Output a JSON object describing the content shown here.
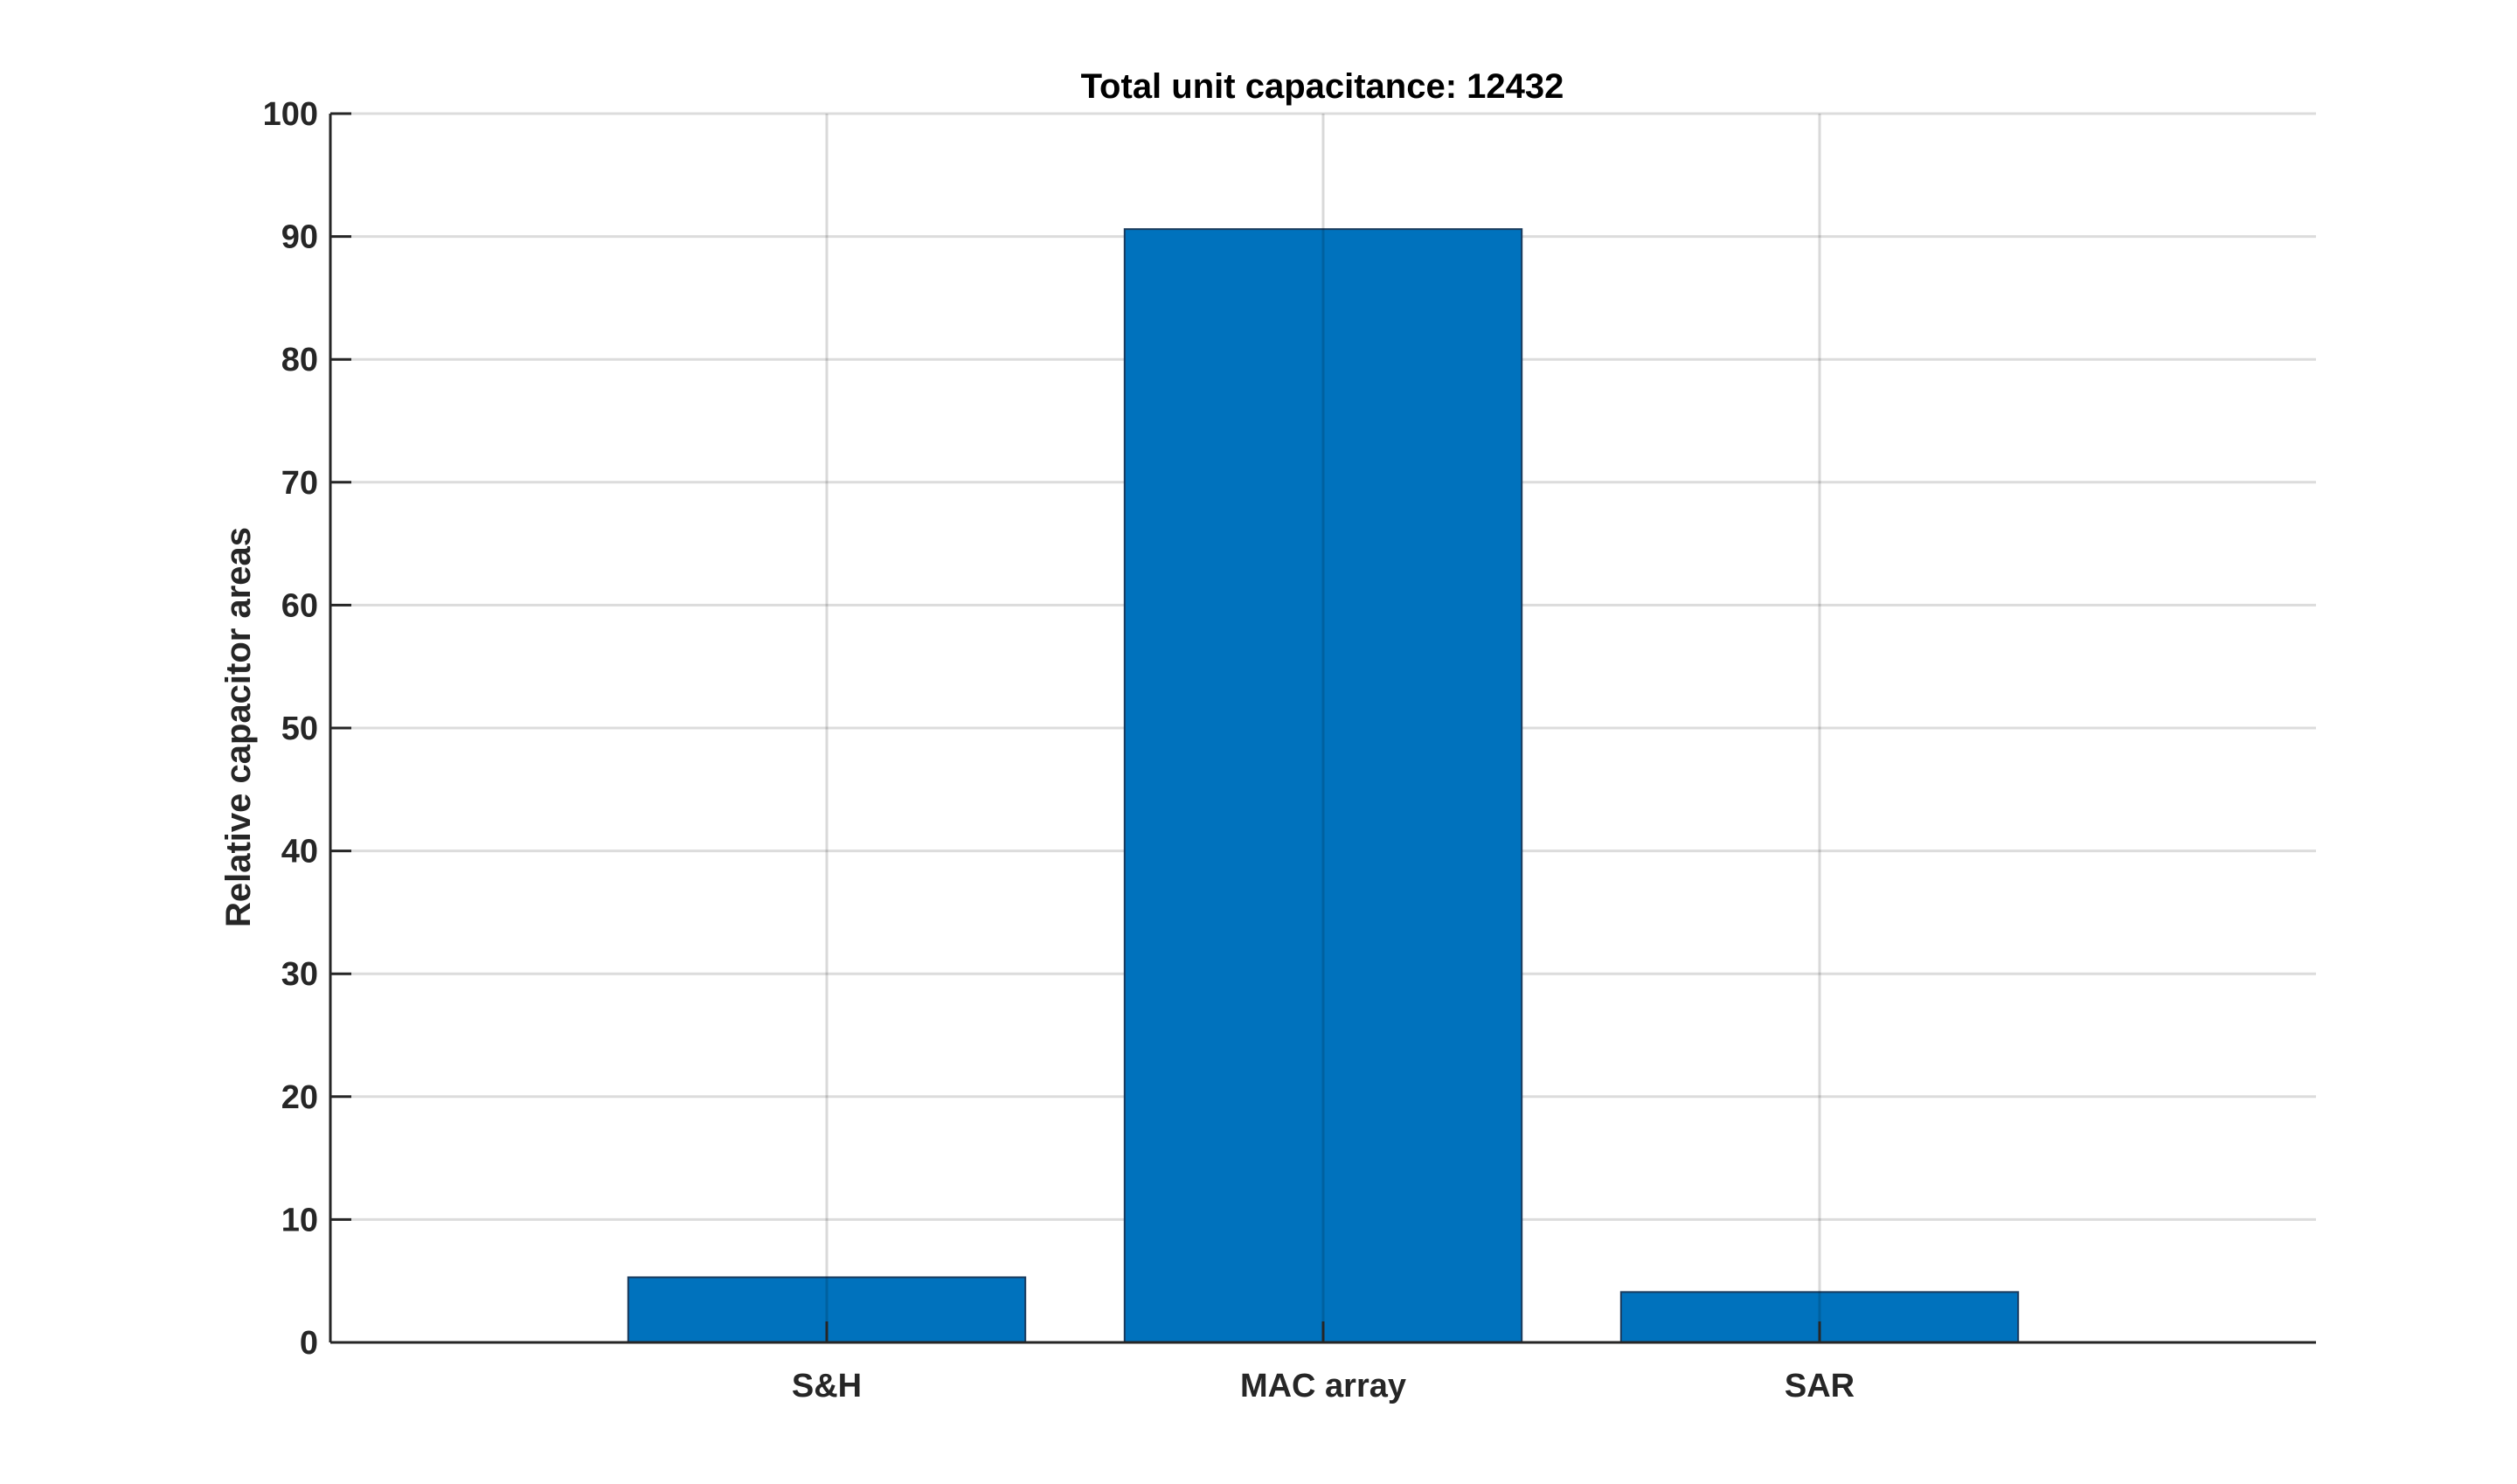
{
  "chart_data": {
    "type": "bar",
    "title": "Total unit capacitance: 12432",
    "xlabel": "",
    "ylabel": "Relative capacitor areas",
    "categories": [
      "S&H",
      "MAC array",
      "SAR"
    ],
    "values": [
      5.3,
      90.6,
      4.1
    ],
    "xlim": [
      0,
      4
    ],
    "ylim": [
      0,
      100
    ],
    "yticks": [
      0,
      10,
      20,
      30,
      40,
      50,
      60,
      70,
      80,
      90,
      100
    ],
    "grid": true,
    "legend": "none",
    "colors": {
      "bar_fill": "#0072BD",
      "bar_edge": "#1a3a5c",
      "grid": "#dcdcdc",
      "axis": "#262626"
    }
  }
}
